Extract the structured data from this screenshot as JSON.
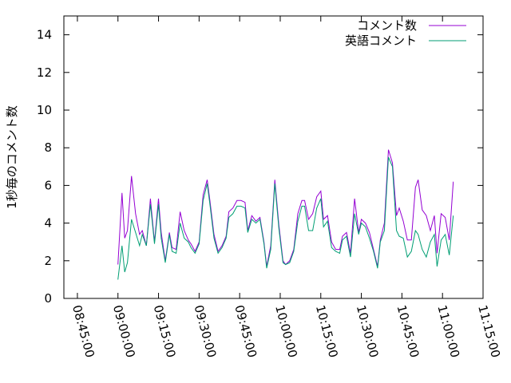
{
  "chart_data": {
    "type": "line",
    "title": "",
    "xlabel": "",
    "ylabel": "1秒毎のコメント数",
    "ylim": [
      0,
      15
    ],
    "y_ticks": [
      0,
      2,
      4,
      6,
      8,
      10,
      12,
      14
    ],
    "x_range": [
      "08:40:00",
      "11:15:00"
    ],
    "x_ticks": [
      "08:45:00",
      "09:00:00",
      "09:15:00",
      "09:30:00",
      "09:45:00",
      "10:00:00",
      "10:15:00",
      "10:30:00",
      "10:45:00",
      "11:00:00",
      "11:15:00"
    ],
    "grid": false,
    "legend_position": "top-right",
    "x": [
      "09:00:00",
      "09:01:30",
      "09:02:30",
      "09:03:30",
      "09:05:00",
      "09:06:30",
      "09:08:00",
      "09:09:00",
      "09:10:30",
      "09:12:00",
      "09:13:30",
      "09:15:00",
      "09:16:00",
      "09:17:30",
      "09:19:00",
      "09:20:00",
      "09:21:30",
      "09:23:00",
      "09:24:30",
      "09:26:00",
      "09:27:00",
      "09:28:30",
      "09:30:00",
      "09:31:30",
      "09:33:00",
      "09:34:00",
      "09:35:30",
      "09:37:00",
      "09:38:30",
      "09:40:00",
      "09:41:00",
      "09:42:30",
      "09:44:00",
      "09:45:30",
      "09:47:00",
      "09:48:00",
      "09:49:30",
      "09:51:00",
      "09:52:30",
      "09:54:00",
      "09:55:00",
      "09:56:30",
      "09:58:00",
      "09:59:30",
      "10:01:00",
      "10:02:00",
      "10:03:30",
      "10:05:00",
      "10:06:30",
      "10:08:00",
      "10:09:00",
      "10:10:30",
      "10:12:00",
      "10:13:30",
      "10:15:00",
      "10:16:00",
      "10:17:30",
      "10:19:00",
      "10:20:30",
      "10:22:00",
      "10:23:00",
      "10:24:30",
      "10:26:00",
      "10:27:30",
      "10:29:00",
      "10:30:00",
      "10:31:30",
      "10:33:00",
      "10:34:30",
      "10:36:00",
      "10:37:00",
      "10:38:30",
      "10:40:00",
      "10:41:30",
      "10:43:00",
      "10:44:00",
      "10:45:30",
      "10:47:00",
      "10:48:30",
      "10:50:00",
      "10:51:00",
      "10:52:30",
      "10:54:00",
      "10:55:30",
      "10:57:00",
      "10:58:00",
      "10:59:30",
      "11:01:00",
      "11:02:30",
      "11:04:00"
    ],
    "series": [
      {
        "name": "コメント数",
        "color": "#9400d3",
        "values": [
          1.8,
          5.6,
          3.2,
          3.6,
          6.5,
          4.5,
          3.4,
          3.6,
          2.8,
          5.3,
          3.0,
          5.3,
          3.5,
          2.0,
          3.5,
          2.7,
          2.6,
          4.6,
          3.6,
          3.1,
          2.9,
          2.5,
          3.0,
          5.5,
          6.3,
          5.2,
          3.4,
          2.5,
          2.8,
          3.3,
          4.6,
          4.8,
          5.2,
          5.2,
          5.1,
          3.6,
          4.4,
          4.1,
          4.3,
          3.0,
          1.7,
          2.8,
          6.3,
          3.9,
          2.0,
          1.8,
          2.0,
          2.6,
          4.5,
          5.2,
          5.2,
          4.2,
          4.5,
          5.4,
          5.7,
          4.2,
          4.4,
          3.0,
          2.6,
          2.6,
          3.3,
          3.5,
          2.4,
          5.3,
          3.5,
          4.2,
          4.0,
          3.5,
          2.6,
          1.7,
          3.1,
          4.0,
          7.9,
          7.2,
          4.4,
          4.8,
          4.1,
          3.1,
          3.1,
          5.9,
          6.3,
          4.7,
          4.4,
          3.6,
          4.4,
          2.4,
          4.5,
          4.3,
          3.1,
          6.2
        ]
      },
      {
        "name": "英語コメント",
        "color": "#009e73",
        "values": [
          1.0,
          2.8,
          1.4,
          1.9,
          4.2,
          3.5,
          2.8,
          3.4,
          2.8,
          5.0,
          2.9,
          5.0,
          3.2,
          1.9,
          3.4,
          2.5,
          2.4,
          4.0,
          3.2,
          3.0,
          2.7,
          2.4,
          2.9,
          5.2,
          6.1,
          5.0,
          3.2,
          2.4,
          2.7,
          3.2,
          4.3,
          4.5,
          4.9,
          4.9,
          4.8,
          3.5,
          4.2,
          4.0,
          4.2,
          2.9,
          1.6,
          2.6,
          6.1,
          3.7,
          1.9,
          1.8,
          1.9,
          2.5,
          4.1,
          4.9,
          4.9,
          3.6,
          3.6,
          4.8,
          5.3,
          3.8,
          4.1,
          2.7,
          2.5,
          2.4,
          3.1,
          3.3,
          2.2,
          4.5,
          3.4,
          4.0,
          3.8,
          3.2,
          2.5,
          1.6,
          3.0,
          3.6,
          7.5,
          7.0,
          3.6,
          3.3,
          3.2,
          2.2,
          2.5,
          3.6,
          3.4,
          2.6,
          2.2,
          3.0,
          3.4,
          1.7,
          3.1,
          3.4,
          2.3,
          4.4
        ]
      }
    ]
  }
}
